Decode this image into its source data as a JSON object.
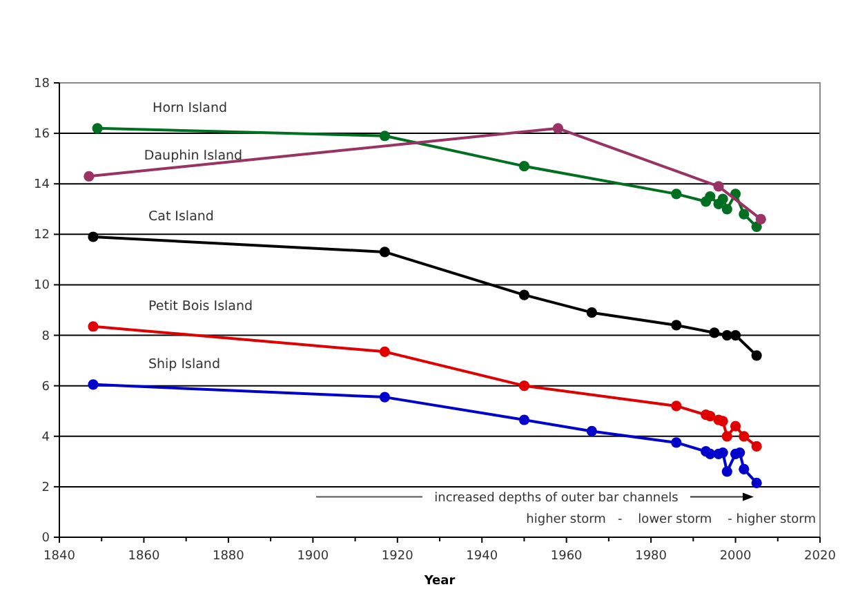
{
  "chart_data": {
    "type": "line",
    "xlabel": "Year",
    "marker": "circle",
    "legend": false,
    "grid": "y",
    "xlim": [
      1840,
      2020
    ],
    "xticks": [
      1840,
      1860,
      1880,
      1900,
      1920,
      1940,
      1960,
      1980,
      2000,
      2020
    ],
    "ylim": [
      0,
      18
    ],
    "yticks": [
      0,
      2,
      4,
      6,
      8,
      10,
      12,
      14,
      16,
      18
    ],
    "series": [
      {
        "name": "Horn Island",
        "color": "#007020",
        "x": [
          1849,
          1917,
          1950,
          1986,
          1993,
          1994,
          1996,
          1997,
          1998,
          2000,
          2002,
          2005
        ],
        "values": [
          16.2,
          15.9,
          14.7,
          13.6,
          13.3,
          13.5,
          13.2,
          13.4,
          13.0,
          13.6,
          12.8,
          12.3
        ]
      },
      {
        "name": "Dauphin Island",
        "color": "#993366",
        "x": [
          1847,
          1958,
          1996,
          2006
        ],
        "values": [
          14.3,
          16.2,
          13.9,
          12.6
        ]
      },
      {
        "name": "Cat Island",
        "color": "#000000",
        "x": [
          1848,
          1917,
          1950,
          1966,
          1986,
          1995,
          1998,
          2000,
          2005
        ],
        "values": [
          11.9,
          11.3,
          9.6,
          8.9,
          8.4,
          8.1,
          8.0,
          8.0,
          7.2
        ]
      },
      {
        "name": "Petit Bois Island",
        "color": "#e00000",
        "x": [
          1848,
          1917,
          1950,
          1986,
          1993,
          1994,
          1996,
          1997,
          1998,
          2000,
          2002,
          2005
        ],
        "values": [
          8.35,
          7.35,
          6.0,
          5.2,
          4.85,
          4.8,
          4.65,
          4.6,
          4.0,
          4.4,
          4.0,
          3.6
        ]
      },
      {
        "name": "Ship Island",
        "color": "#0000cc",
        "x": [
          1848,
          1917,
          1950,
          1966,
          1986,
          1993,
          1994,
          1996,
          1997,
          1998,
          2000,
          2001,
          2002,
          2005
        ],
        "values": [
          6.05,
          5.55,
          4.65,
          4.2,
          3.75,
          3.4,
          3.3,
          3.3,
          3.35,
          2.6,
          3.3,
          3.35,
          2.7,
          2.15
        ]
      }
    ],
    "annotations": [
      "increased depths of outer bar channels",
      "higher storm   -    lower storm    - higher storm"
    ]
  }
}
